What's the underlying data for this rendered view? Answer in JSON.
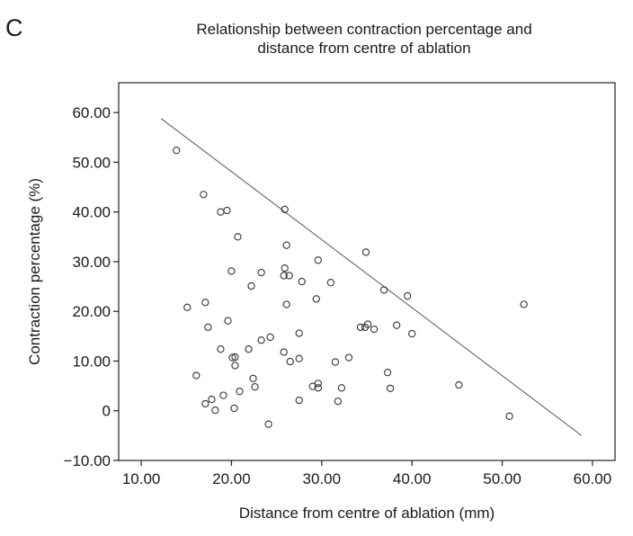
{
  "panel_label": "C",
  "chart_data": {
    "type": "scatter",
    "title_lines": [
      "Relationship between contraction percentage and",
      "distance from centre of ablation"
    ],
    "xlabel": "Distance from centre of ablation (mm)",
    "ylabel": "Contraction percentage (%)",
    "xlim": [
      7.5,
      62.5
    ],
    "ylim": [
      -10,
      66
    ],
    "x_ticks": [
      10,
      20,
      30,
      40,
      50,
      60
    ],
    "x_tick_labels": [
      "10.00",
      "20.00",
      "30.00",
      "40.00",
      "50.00",
      "60.00"
    ],
    "y_ticks": [
      60,
      50,
      40,
      30,
      20,
      10,
      0,
      -10
    ],
    "y_tick_labels": [
      "60.00",
      "50.00",
      "40.00",
      "30.00",
      "20.00",
      "10.00",
      "0",
      "−10.00"
    ],
    "grid": false,
    "reference_line": {
      "x": [
        12.2,
        58.8
      ],
      "y": [
        58.8,
        -5.0
      ]
    },
    "points": [
      [
        13.9,
        52.4
      ],
      [
        16.9,
        43.5
      ],
      [
        18.8,
        40.0
      ],
      [
        19.5,
        40.3
      ],
      [
        25.9,
        40.5
      ],
      [
        15.1,
        20.8
      ],
      [
        17.1,
        21.8
      ],
      [
        17.4,
        16.8
      ],
      [
        20.7,
        35.0
      ],
      [
        20.0,
        28.1
      ],
      [
        19.6,
        18.1
      ],
      [
        22.2,
        25.1
      ],
      [
        23.3,
        27.8
      ],
      [
        25.9,
        28.7
      ],
      [
        25.8,
        27.2
      ],
      [
        26.4,
        27.2
      ],
      [
        26.1,
        33.3
      ],
      [
        29.6,
        30.3
      ],
      [
        31.0,
        25.8
      ],
      [
        27.8,
        26.0
      ],
      [
        26.1,
        21.4
      ],
      [
        29.4,
        22.5
      ],
      [
        34.9,
        31.9
      ],
      [
        36.9,
        24.3
      ],
      [
        39.5,
        23.1
      ],
      [
        52.4,
        21.4
      ],
      [
        16.1,
        7.1
      ],
      [
        18.8,
        12.4
      ],
      [
        20.1,
        10.7
      ],
      [
        20.4,
        10.8
      ],
      [
        20.4,
        9.1
      ],
      [
        21.9,
        12.4
      ],
      [
        23.3,
        14.2
      ],
      [
        24.3,
        14.8
      ],
      [
        25.8,
        11.8
      ],
      [
        26.5,
        9.9
      ],
      [
        27.5,
        10.5
      ],
      [
        27.5,
        15.6
      ],
      [
        31.5,
        9.8
      ],
      [
        33.0,
        10.7
      ],
      [
        34.3,
        16.8
      ],
      [
        34.8,
        16.8
      ],
      [
        35.1,
        17.4
      ],
      [
        35.8,
        16.4
      ],
      [
        38.3,
        17.2
      ],
      [
        40.0,
        15.5
      ],
      [
        17.1,
        1.4
      ],
      [
        17.8,
        2.3
      ],
      [
        18.2,
        0.1
      ],
      [
        19.1,
        3.1
      ],
      [
        20.3,
        0.5
      ],
      [
        20.9,
        3.9
      ],
      [
        22.4,
        6.5
      ],
      [
        22.6,
        4.8
      ],
      [
        24.1,
        -2.7
      ],
      [
        27.5,
        2.1
      ],
      [
        29.0,
        4.9
      ],
      [
        29.6,
        5.5
      ],
      [
        29.6,
        4.6
      ],
      [
        31.8,
        1.9
      ],
      [
        32.2,
        4.6
      ],
      [
        37.3,
        7.7
      ],
      [
        37.6,
        4.5
      ],
      [
        45.2,
        5.2
      ],
      [
        50.8,
        -1.1
      ]
    ]
  }
}
